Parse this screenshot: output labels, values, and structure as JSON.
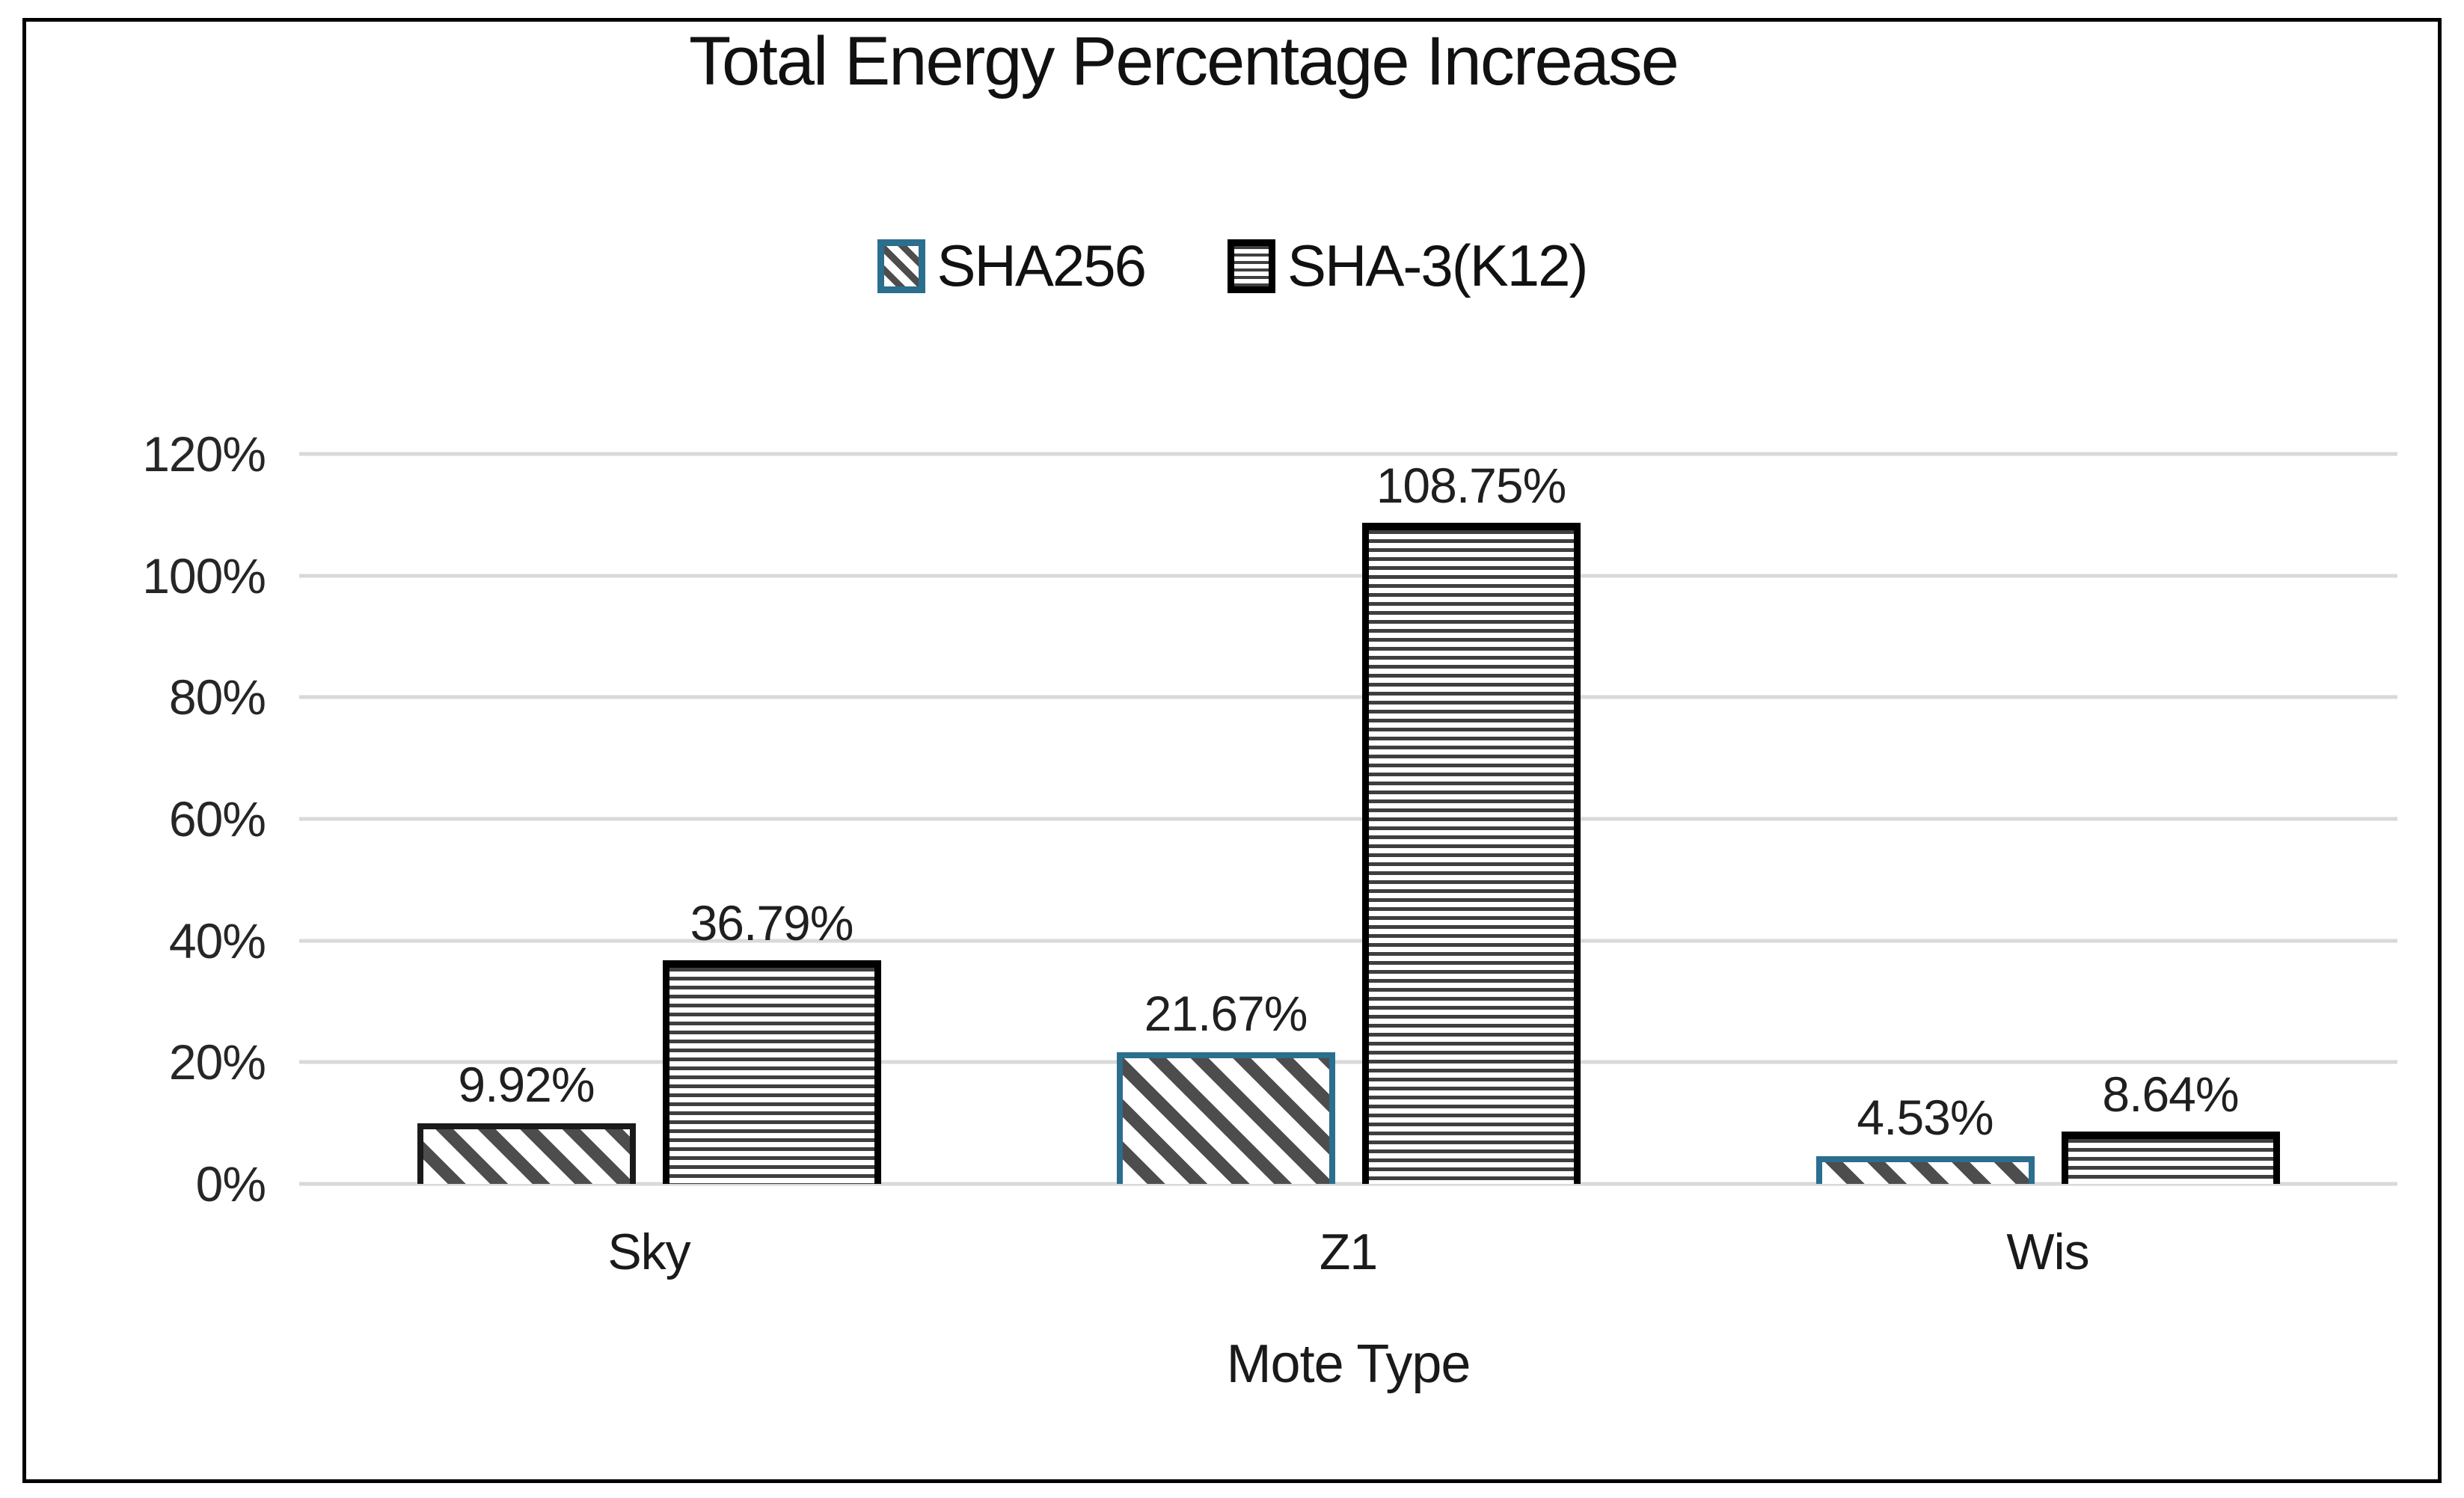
{
  "title": "Total Energy Percentage Increase",
  "legend": {
    "items": [
      {
        "label": "SHA256",
        "pattern": "diagonal-hatch",
        "border_color": "#2b6e8e"
      },
      {
        "label": "SHA-3(K12)",
        "pattern": "horizontal-stripes",
        "border_color": "#000000"
      }
    ]
  },
  "y_axis": {
    "ticks": [
      "120%",
      "100%",
      "80%",
      "60%",
      "40%",
      "20%",
      "0%"
    ],
    "min": 0,
    "max": 120,
    "step": 20
  },
  "x_axis": {
    "title": "Mote Type",
    "categories": [
      "Sky",
      "Z1",
      "Wis"
    ]
  },
  "chart_data": {
    "type": "bar",
    "title": "Total Energy Percentage Increase",
    "xlabel": "Mote Type",
    "ylabel": "",
    "ylim": [
      0,
      120
    ],
    "grid": true,
    "legend_position": "top",
    "categories": [
      "Sky",
      "Z1",
      "Wis"
    ],
    "series": [
      {
        "name": "SHA256",
        "values": [
          9.92,
          21.67,
          4.53
        ],
        "labels": [
          "9.92%",
          "21.67%",
          "4.53%"
        ],
        "pattern": "diagonal-hatch",
        "border_colors": [
          "#1a1a1a",
          "#2b6e8e",
          "#2b6e8e"
        ]
      },
      {
        "name": "SHA-3(K12)",
        "values": [
          36.79,
          108.75,
          8.64
        ],
        "labels": [
          "36.79%",
          "108.75%",
          "8.64%"
        ],
        "pattern": "horizontal-stripes",
        "border_colors": [
          "#000000",
          "#000000",
          "#000000"
        ]
      }
    ]
  },
  "colors": {
    "sha256_accent": "#2b6e8e",
    "sha3_accent": "#000000",
    "hatch_gray": "#4d4d4d",
    "gridline": "#d9d9d9",
    "text": "#1f1f1f",
    "frame_border": "#000000",
    "background": "#ffffff"
  }
}
